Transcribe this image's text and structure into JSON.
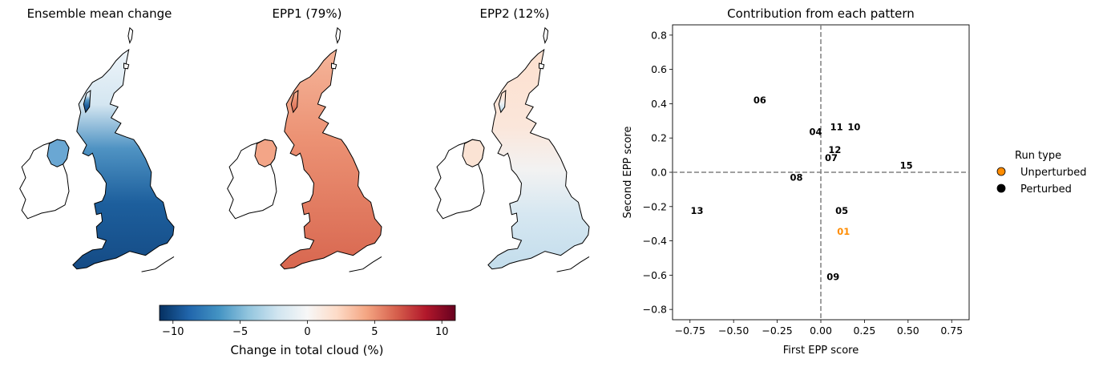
{
  "maps": {
    "panels": [
      {
        "title": "Ensemble mean change",
        "scheme": "mean"
      },
      {
        "title": "EPP1 (79%)",
        "scheme": "epp1"
      },
      {
        "title": "EPP2 (12%)",
        "scheme": "epp2"
      }
    ],
    "colorbar": {
      "label": "Change in total cloud (%)",
      "range": [
        -11,
        11
      ],
      "ticks": [
        "−10",
        "−5",
        "0",
        "5",
        "10"
      ],
      "tick_values": [
        -10,
        -5,
        0,
        5,
        10
      ],
      "colors": [
        "#053061",
        "#2166ac",
        "#4393c3",
        "#92c5de",
        "#d1e5f0",
        "#f7f7f7",
        "#fddbc7",
        "#f4a582",
        "#d6604d",
        "#b2182b",
        "#67001f"
      ]
    }
  },
  "chart_data": {
    "type": "scatter",
    "title": "Contribution from each pattern",
    "xlabel": "First EPP score",
    "ylabel": "Second EPP score",
    "xlim": [
      -0.85,
      0.85
    ],
    "ylim": [
      -0.86,
      0.86
    ],
    "xticks": [
      -0.75,
      -0.5,
      -0.25,
      0.0,
      0.25,
      0.5,
      0.75
    ],
    "xtick_labels": [
      "−0.75",
      "−0.50",
      "−0.25",
      "0.00",
      "0.25",
      "0.50",
      "0.75"
    ],
    "yticks": [
      0.8,
      0.6,
      0.4,
      0.2,
      0.0,
      -0.2,
      -0.4,
      -0.6,
      -0.8
    ],
    "ytick_labels": [
      "0.8",
      "0.6",
      "0.4",
      "0.2",
      "0.0",
      "−0.2",
      "−0.4",
      "−0.6",
      "−0.8"
    ],
    "reference_lines": {
      "x": 0.0,
      "y": 0.0,
      "style": "dashed",
      "color": "#808080"
    },
    "points": [
      {
        "label": "06",
        "x": -0.35,
        "y": 0.42,
        "run_type": "Perturbed"
      },
      {
        "label": "04",
        "x": -0.03,
        "y": 0.235,
        "run_type": "Perturbed"
      },
      {
        "label": "11",
        "x": 0.09,
        "y": 0.265,
        "run_type": "Perturbed"
      },
      {
        "label": "10",
        "x": 0.19,
        "y": 0.265,
        "run_type": "Perturbed"
      },
      {
        "label": "12",
        "x": 0.08,
        "y": 0.13,
        "run_type": "Perturbed"
      },
      {
        "label": "07",
        "x": 0.06,
        "y": 0.085,
        "run_type": "Perturbed"
      },
      {
        "label": "15",
        "x": 0.49,
        "y": 0.04,
        "run_type": "Perturbed"
      },
      {
        "label": "08",
        "x": -0.14,
        "y": -0.03,
        "run_type": "Perturbed"
      },
      {
        "label": "13",
        "x": -0.71,
        "y": -0.225,
        "run_type": "Perturbed"
      },
      {
        "label": "05",
        "x": 0.12,
        "y": -0.225,
        "run_type": "Perturbed"
      },
      {
        "label": "01",
        "x": 0.13,
        "y": -0.345,
        "run_type": "Unperturbed"
      },
      {
        "label": "09",
        "x": 0.07,
        "y": -0.61,
        "run_type": "Perturbed"
      }
    ],
    "legend": {
      "title": "Run type",
      "placement": "right",
      "entries": [
        {
          "name": "Unperturbed",
          "color": "#ff8c00"
        },
        {
          "name": "Perturbed",
          "color": "#000000"
        }
      ]
    }
  }
}
